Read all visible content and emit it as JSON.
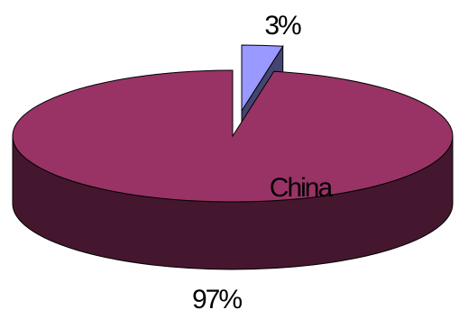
{
  "chart_data": {
    "type": "pie",
    "categories": [
      null,
      "China"
    ],
    "values": [
      3,
      97
    ],
    "value_labels": [
      "3%",
      "97%"
    ],
    "colors": [
      "#9999ff",
      "#993366"
    ]
  }
}
